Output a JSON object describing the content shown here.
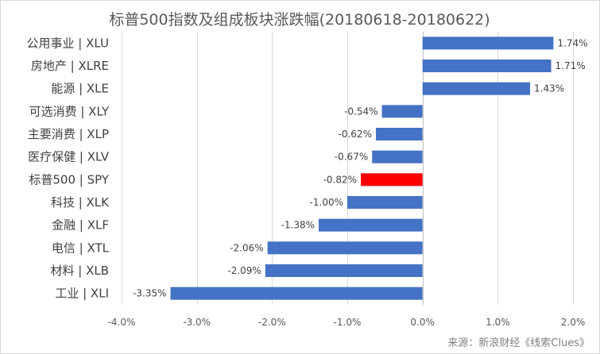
{
  "chart_data": {
    "type": "bar",
    "orientation": "horizontal",
    "title": "标普500指数及组成板块涨跌幅(20180618-20180622)",
    "source": "来源：新浪财经《线索Clues》",
    "categories": [
      "公用事业 | XLU",
      "房地产 | XLRE",
      "能源 | XLE",
      "可选消费 | XLY",
      "主要消费 | XLP",
      "医疗保健 | XLV",
      "标普500 | SPY",
      "科技 | XLK",
      "金融 | XLF",
      "电信 | XTL",
      "材料 | XLB",
      "工业 | XLI"
    ],
    "values": [
      1.74,
      1.71,
      1.43,
      -0.54,
      -0.62,
      -0.67,
      -0.82,
      -1.0,
      -1.38,
      -2.06,
      -2.09,
      -3.35
    ],
    "data_labels": [
      "1.74%",
      "1.71%",
      "1.43%",
      "-0.54%",
      "-0.62%",
      "-0.67%",
      "-0.82%",
      "-1.00%",
      "-1.38%",
      "-2.06%",
      "-2.09%",
      "-3.35%"
    ],
    "bar_colors": [
      "#4472c4",
      "#4472c4",
      "#4472c4",
      "#4472c4",
      "#4472c4",
      "#4472c4",
      "#ff0000",
      "#4472c4",
      "#4472c4",
      "#4472c4",
      "#4472c4",
      "#4472c4"
    ],
    "xlim": [
      -4.0,
      2.0
    ],
    "xticks": [
      -4.0,
      -3.0,
      -2.0,
      -1.0,
      0.0,
      1.0,
      2.0
    ],
    "xtick_labels": [
      "-4.0%",
      "-3.0%",
      "-2.0%",
      "-1.0%",
      "0.0%",
      "1.0%",
      "2.0%"
    ],
    "grid": "vertical",
    "legend": "none"
  }
}
